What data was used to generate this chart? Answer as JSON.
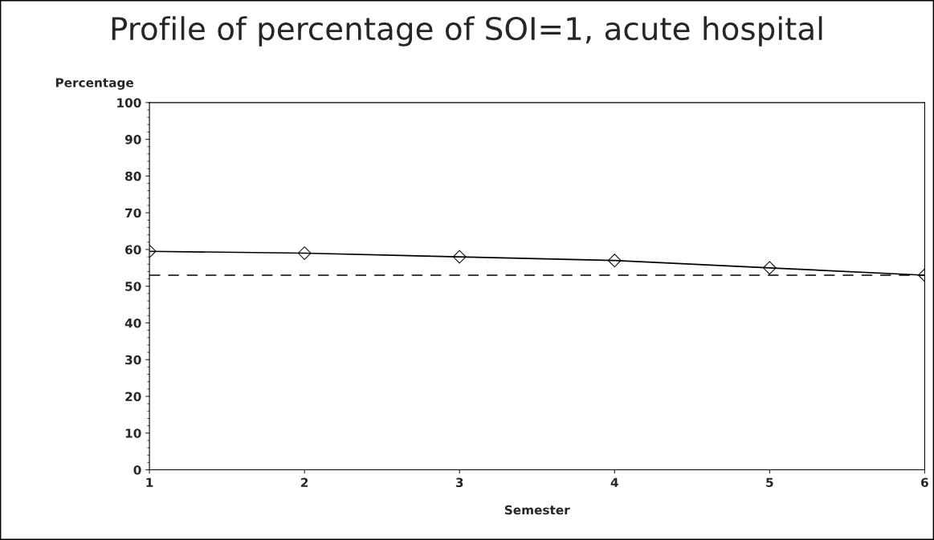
{
  "chart_data": {
    "type": "line",
    "title": "Profile of percentage of SOI=1, acute hospital",
    "xlabel": "Semester",
    "ylabel": "Percentage",
    "x": [
      1,
      2,
      3,
      4,
      5,
      6
    ],
    "series": [
      {
        "color": "#000000",
        "values": [
          59.5,
          59.0,
          58.0,
          57.0,
          55.0,
          53.0
        ]
      }
    ],
    "marker": "diamond",
    "line_style": "solid",
    "xlim": [
      1,
      6
    ],
    "xticks": [
      1,
      2,
      3,
      4,
      5,
      6
    ],
    "ylim": [
      0,
      100
    ],
    "yticks": [
      0,
      10,
      20,
      30,
      40,
      50,
      60,
      70,
      80,
      90,
      100
    ],
    "ref_lines": [
      {
        "axis": "y",
        "value": 53,
        "color": "#000000",
        "line_style": "dashed"
      }
    ],
    "grid": false,
    "legend": false
  }
}
